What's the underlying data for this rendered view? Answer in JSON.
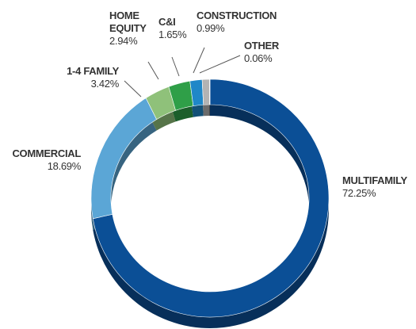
{
  "chart_data": {
    "type": "donut",
    "categories": [
      "MULTIFAMILY",
      "COMMERCIAL",
      "1-4 FAMILY",
      "HOME EQUITY",
      "C&I",
      "CONSTRUCTION",
      "OTHER"
    ],
    "values": [
      72.25,
      18.69,
      3.42,
      2.94,
      1.65,
      0.99,
      0.06
    ],
    "value_labels": [
      "72.25%",
      "18.69%",
      "3.42%",
      "2.94%",
      "1.65%",
      "0.99%",
      "0.06%"
    ],
    "colors": [
      "#0b4f96",
      "#5ba6d6",
      "#8fc17a",
      "#2f9f48",
      "#1f87c8",
      "#b3b3b3",
      "#3a3a3a"
    ]
  }
}
